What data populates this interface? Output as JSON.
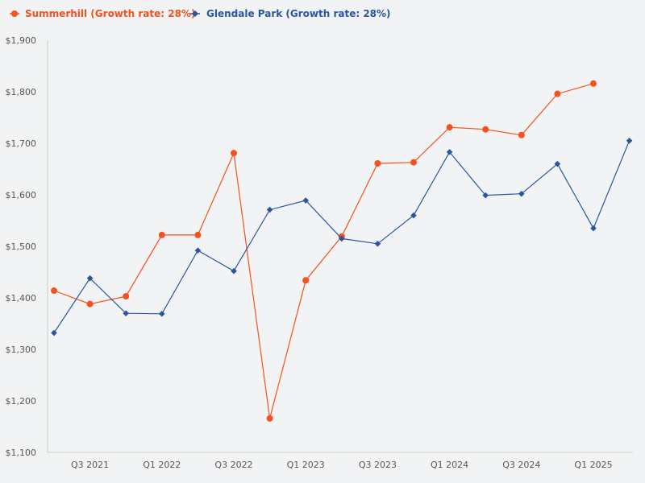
{
  "chart_data": {
    "type": "line",
    "title": "",
    "xlabel": "",
    "ylabel": "",
    "ylim": [
      1100,
      1900
    ],
    "y_ticks": [
      1100,
      1200,
      1300,
      1400,
      1500,
      1600,
      1700,
      1800,
      1900
    ],
    "y_tick_labels": [
      "$1,100",
      "$1,200",
      "$1,300",
      "$1,400",
      "$1,500",
      "$1,600",
      "$1,700",
      "$1,800",
      "$1,900"
    ],
    "categories": [
      "Q2 2021",
      "Q3 2021",
      "Q4 2021",
      "Q1 2022",
      "Q2 2022",
      "Q3 2022",
      "Q4 2022",
      "Q1 2023",
      "Q2 2023",
      "Q3 2023",
      "Q4 2023",
      "Q1 2024",
      "Q2 2024",
      "Q3 2024",
      "Q4 2024",
      "Q1 2025",
      "Q2 2025"
    ],
    "x_tick_labels": [
      "Q3 2021",
      "Q1 2022",
      "Q3 2022",
      "Q1 2023",
      "Q3 2023",
      "Q1 2024",
      "Q3 2024",
      "Q1 2025"
    ],
    "legend_position": "top-left",
    "grid": false,
    "series": [
      {
        "name": "Summerhill (Growth rate: 28%)",
        "color": "#f4511e",
        "marker": "circle",
        "values": [
          1414,
          1388,
          1403,
          1522,
          1522,
          1681,
          1166,
          1434,
          1519,
          1661,
          1663,
          1731,
          1727,
          1716,
          1796,
          1816,
          null
        ]
      },
      {
        "name": "Glendale Park (Growth rate: 28%)",
        "color": "#2a56a0",
        "marker": "diamond",
        "values": [
          1332,
          1438,
          1370,
          1369,
          1492,
          1452,
          1571,
          1589,
          1515,
          1505,
          1560,
          1683,
          1599,
          1602,
          1660,
          1535,
          1705
        ]
      }
    ]
  }
}
